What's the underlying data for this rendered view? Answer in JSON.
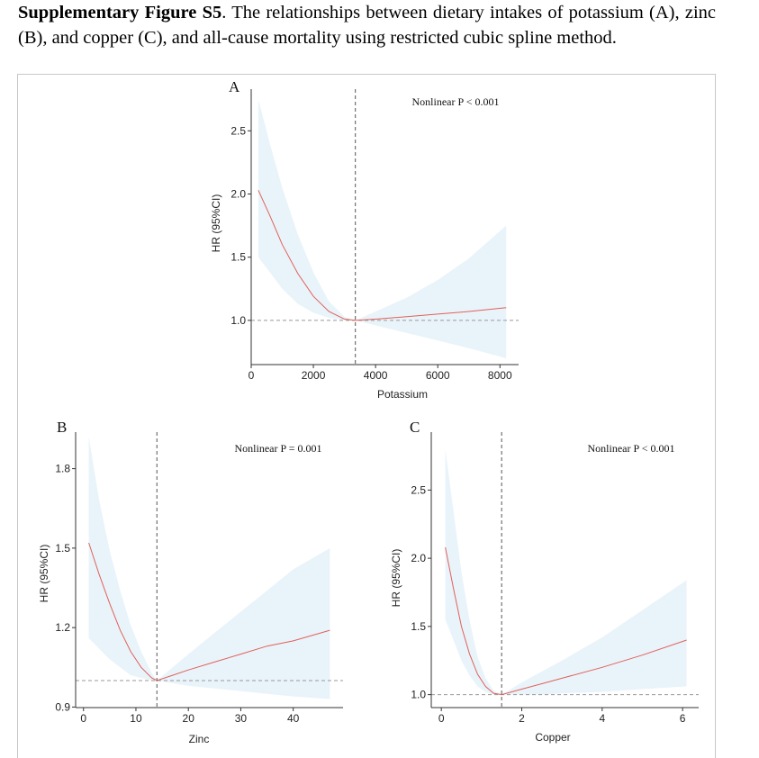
{
  "caption": {
    "bold": "Supplementary Figure S5",
    "text": ". The relationships between dietary intakes of potassium (A), zinc (B), and copper (C), and all-cause mortality using restricted cubic spline method."
  },
  "colors": {
    "band": "#e9f4fa",
    "curve": "#e0605a",
    "ref": "#999999",
    "axis": "#333333"
  },
  "chart_data": [
    {
      "panel": "A",
      "type": "line",
      "xlabel": "Potassium",
      "ylabel": "HR (95%CI)",
      "annotation": "Nonlinear P < 0.001",
      "xlim": [
        0,
        8600
      ],
      "ylim": [
        0.65,
        2.83
      ],
      "xticks": [
        0,
        2000,
        4000,
        6000,
        8000
      ],
      "xtick_labels": [
        "0",
        "2000",
        "4000",
        "6000",
        "8000"
      ],
      "yticks": [
        1.0,
        1.5,
        2.0,
        2.5
      ],
      "ytick_labels": [
        "1.0",
        "1.5",
        "2.0",
        "2.5"
      ],
      "ref_x": 3350,
      "ref_y": 1.0,
      "x": [
        230,
        600,
        1000,
        1500,
        2000,
        2500,
        3000,
        3350,
        4000,
        5000,
        6000,
        7000,
        8200
      ],
      "hr": [
        2.03,
        1.83,
        1.6,
        1.37,
        1.19,
        1.07,
        1.01,
        1.0,
        1.01,
        1.03,
        1.05,
        1.07,
        1.1
      ],
      "lower": [
        1.5,
        1.38,
        1.25,
        1.13,
        1.06,
        1.02,
        1.0,
        1.0,
        0.96,
        0.9,
        0.84,
        0.78,
        0.7
      ],
      "upper": [
        2.75,
        2.4,
        2.05,
        1.68,
        1.38,
        1.15,
        1.03,
        1.0,
        1.07,
        1.18,
        1.32,
        1.49,
        1.75
      ]
    },
    {
      "panel": "B",
      "type": "line",
      "xlabel": "Zinc",
      "ylabel": "HR (95%CI)",
      "annotation": "Nonlinear P = 0.001",
      "xlim": [
        -1.5,
        49.5
      ],
      "ylim": [
        0.898,
        1.938
      ],
      "xticks": [
        0,
        10,
        20,
        30,
        40
      ],
      "xtick_labels": [
        "0",
        "10",
        "20",
        "30",
        "40"
      ],
      "yticks": [
        0.9,
        1.2,
        1.5,
        1.8
      ],
      "ytick_labels": [
        "0.9",
        "1.2",
        "1.5",
        "1.8"
      ],
      "ref_x": 14,
      "ref_y": 1.0,
      "x": [
        1,
        3,
        5,
        7,
        9,
        11,
        13,
        14,
        17,
        20,
        25,
        30,
        35,
        40,
        47
      ],
      "hr": [
        1.52,
        1.4,
        1.29,
        1.19,
        1.11,
        1.05,
        1.01,
        1.0,
        1.02,
        1.04,
        1.07,
        1.1,
        1.13,
        1.15,
        1.19
      ],
      "lower": [
        1.16,
        1.12,
        1.08,
        1.05,
        1.02,
        1.01,
        1.0,
        1.0,
        0.99,
        0.98,
        0.97,
        0.96,
        0.95,
        0.94,
        0.93
      ],
      "upper": [
        1.92,
        1.68,
        1.49,
        1.34,
        1.21,
        1.11,
        1.03,
        1.0,
        1.05,
        1.1,
        1.18,
        1.26,
        1.34,
        1.42,
        1.5
      ]
    },
    {
      "panel": "C",
      "type": "line",
      "xlabel": "Copper",
      "ylabel": "HR (95%CI)",
      "annotation": "Nonlinear P < 0.001",
      "xlim": [
        -0.25,
        6.4
      ],
      "ylim": [
        0.905,
        2.925
      ],
      "xticks": [
        0,
        2,
        4,
        6
      ],
      "xtick_labels": [
        "0",
        "2",
        "4",
        "6"
      ],
      "yticks": [
        1.0,
        1.5,
        2.0,
        2.5
      ],
      "ytick_labels": [
        "1.0",
        "1.5",
        "2.0",
        "2.5"
      ],
      "ref_x": 1.5,
      "ref_y": 1.0,
      "x": [
        0.1,
        0.3,
        0.5,
        0.7,
        0.9,
        1.1,
        1.3,
        1.5,
        2.0,
        2.5,
        3.0,
        4.0,
        5.0,
        6.1
      ],
      "hr": [
        2.08,
        1.78,
        1.5,
        1.3,
        1.15,
        1.06,
        1.01,
        1.0,
        1.04,
        1.08,
        1.12,
        1.2,
        1.29,
        1.4
      ],
      "lower": [
        1.55,
        1.4,
        1.25,
        1.14,
        1.06,
        1.02,
        1.0,
        1.0,
        1.0,
        1.0,
        1.01,
        1.02,
        1.04,
        1.06
      ],
      "upper": [
        2.8,
        2.35,
        1.9,
        1.55,
        1.28,
        1.12,
        1.03,
        1.0,
        1.09,
        1.17,
        1.25,
        1.42,
        1.62,
        1.84
      ]
    }
  ]
}
